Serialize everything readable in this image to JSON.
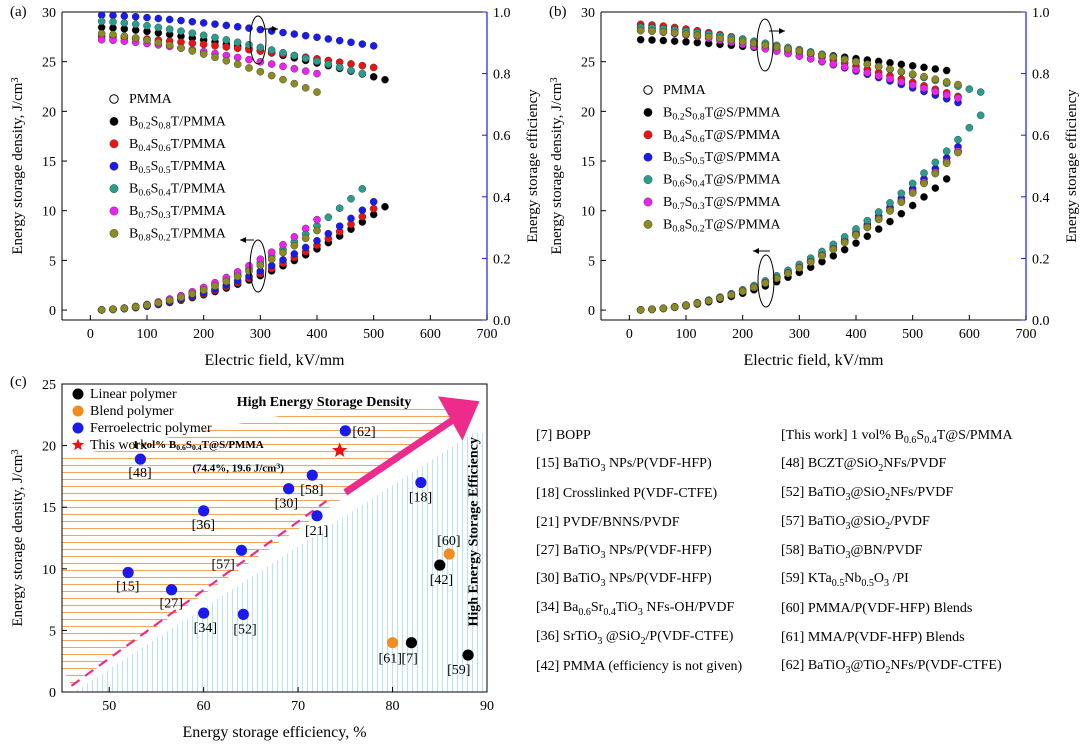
{
  "chart_data": [
    {
      "id": "a",
      "type": "scatter",
      "panel_label": "(a)",
      "xlabel": "Electric field, kV/mm",
      "ylabel_left": "Energy storage density, J/cm",
      "ylabel_left_sup": "3",
      "ylabel_right": "Energy storage efficiency",
      "xlim": [
        -50,
        700
      ],
      "ylim_left": [
        -1,
        30
      ],
      "ylim_right": [
        0,
        1.0
      ],
      "xticks": [
        0,
        100,
        200,
        300,
        400,
        500,
        600,
        700
      ],
      "yticks_left": [
        0,
        5,
        10,
        15,
        20,
        25,
        30
      ],
      "yticks_right": [
        "0.0",
        "0.2",
        "0.4",
        "0.6",
        "0.8",
        "1.0"
      ],
      "legend": [
        {
          "main": "PMMA",
          "parts": []
        },
        {
          "main": "",
          "parts": [
            [
              "B",
              ""
            ],
            [
              "0.2",
              "sub"
            ],
            [
              "S",
              ""
            ],
            [
              "0.8",
              "sub"
            ],
            [
              "T/PMMA",
              ""
            ]
          ]
        },
        {
          "main": "",
          "parts": [
            [
              "B",
              ""
            ],
            [
              "0.4",
              "sub"
            ],
            [
              "S",
              ""
            ],
            [
              "0.6",
              "sub"
            ],
            [
              "T/PMMA",
              ""
            ]
          ]
        },
        {
          "main": "",
          "parts": [
            [
              "B",
              ""
            ],
            [
              "0.5",
              "sub"
            ],
            [
              "S",
              ""
            ],
            [
              "0.5",
              "sub"
            ],
            [
              "T/PMMA",
              ""
            ]
          ]
        },
        {
          "main": "",
          "parts": [
            [
              "B",
              ""
            ],
            [
              "0.6",
              "sub"
            ],
            [
              "S",
              ""
            ],
            [
              "0.4",
              "sub"
            ],
            [
              "T/PMMA",
              ""
            ]
          ]
        },
        {
          "main": "",
          "parts": [
            [
              "B",
              ""
            ],
            [
              "0.7",
              "sub"
            ],
            [
              "S",
              ""
            ],
            [
              "0.3",
              "sub"
            ],
            [
              "T/PMMA",
              ""
            ]
          ]
        },
        {
          "main": "",
          "parts": [
            [
              "B",
              ""
            ],
            [
              "0.8",
              "sub"
            ],
            [
              "S",
              ""
            ],
            [
              "0.2",
              "sub"
            ],
            [
              "T/PMMA",
              ""
            ]
          ]
        }
      ],
      "series": [
        {
          "name": "PMMA",
          "color": "#ffffff",
          "stroke": "#000000",
          "density_max_x": 0,
          "density_max_y": 0,
          "eff": []
        },
        {
          "name": "B0.2S0.8T/PMMA",
          "color": "#000000",
          "density_max_x": 520,
          "density_max_y": 10.4,
          "eff_start": 0.95,
          "eff_end": 0.78
        },
        {
          "name": "B0.4S0.6T/PMMA",
          "color": "#ee1111",
          "density_max_x": 500,
          "density_max_y": 10.2,
          "eff_start": 0.92,
          "eff_end": 0.82
        },
        {
          "name": "B0.5S0.5T/PMMA",
          "color": "#1a1aee",
          "density_max_x": 500,
          "density_max_y": 10.9,
          "eff_start": 0.99,
          "eff_end": 0.89
        },
        {
          "name": "B0.6S0.4T/PMMA",
          "color": "#2a9d8f",
          "density_max_x": 480,
          "density_max_y": 12.2,
          "eff_start": 0.97,
          "eff_end": 0.8
        },
        {
          "name": "B0.7S0.3T/PMMA",
          "color": "#ee22ee",
          "density_max_x": 400,
          "density_max_y": 9.1,
          "eff_start": 0.91,
          "eff_end": 0.8
        },
        {
          "name": "B0.8S0.2T/PMMA",
          "color": "#8b8b22",
          "density_max_x": 400,
          "density_max_y": 8.0,
          "eff_start": 0.93,
          "eff_end": 0.74
        }
      ]
    },
    {
      "id": "b",
      "type": "scatter",
      "panel_label": "(b)",
      "xlabel": "Electric field, kV/mm",
      "ylabel_left": "Energy storage density, J/cm",
      "ylabel_left_sup": "3",
      "ylabel_right": "Energy storage efficiency",
      "xlim": [
        -50,
        700
      ],
      "ylim_left": [
        -1,
        30
      ],
      "ylim_right": [
        0,
        1.0
      ],
      "xticks": [
        0,
        100,
        200,
        300,
        400,
        500,
        600,
        700
      ],
      "yticks_left": [
        0,
        5,
        10,
        15,
        20,
        25,
        30
      ],
      "yticks_right": [
        "0.0",
        "0.2",
        "0.4",
        "0.6",
        "0.8",
        "1.0"
      ],
      "legend": [
        {
          "main": "PMMA",
          "parts": []
        },
        {
          "main": "",
          "parts": [
            [
              "B",
              ""
            ],
            [
              "0.2",
              "sub"
            ],
            [
              "S",
              ""
            ],
            [
              "0.8",
              "sub"
            ],
            [
              "T@S/PMMA",
              ""
            ]
          ]
        },
        {
          "main": "",
          "parts": [
            [
              "B",
              ""
            ],
            [
              "0.4",
              "sub"
            ],
            [
              "S",
              ""
            ],
            [
              "0.6",
              "sub"
            ],
            [
              "T@S/PMMA",
              ""
            ]
          ]
        },
        {
          "main": "",
          "parts": [
            [
              "B",
              ""
            ],
            [
              "0.5",
              "sub"
            ],
            [
              "S",
              ""
            ],
            [
              "0.5",
              "sub"
            ],
            [
              "T@S/PMMA",
              ""
            ]
          ]
        },
        {
          "main": "",
          "parts": [
            [
              "B",
              ""
            ],
            [
              "0.6",
              "sub"
            ],
            [
              "S",
              ""
            ],
            [
              "0.4",
              "sub"
            ],
            [
              "T@S/PMMA",
              ""
            ]
          ]
        },
        {
          "main": "",
          "parts": [
            [
              "B",
              ""
            ],
            [
              "0.7",
              "sub"
            ],
            [
              "S",
              ""
            ],
            [
              "0.3",
              "sub"
            ],
            [
              "T@S/PMMA",
              ""
            ]
          ]
        },
        {
          "main": "",
          "parts": [
            [
              "B",
              ""
            ],
            [
              "0.8",
              "sub"
            ],
            [
              "S",
              ""
            ],
            [
              "0.2",
              "sub"
            ],
            [
              "T@S/PMMA",
              ""
            ]
          ]
        }
      ],
      "series": [
        {
          "name": "PMMA",
          "color": "#ffffff",
          "stroke": "#000000",
          "density_max_x": 0,
          "density_max_y": 0,
          "eff": []
        },
        {
          "name": "B0.2S0.8T@S/PMMA",
          "color": "#000000",
          "density_max_x": 560,
          "density_max_y": 13.2,
          "eff_start": 0.91,
          "eff_end": 0.81
        },
        {
          "name": "B0.4S0.6T@S/PMMA",
          "color": "#ee1111",
          "density_max_x": 590,
          "density_max_y": 16.5,
          "eff_start": 0.96,
          "eff_end": 0.72
        },
        {
          "name": "B0.5S0.5T@S/PMMA",
          "color": "#1a1aee",
          "density_max_x": 590,
          "density_max_y": 17.0,
          "eff_start": 0.95,
          "eff_end": 0.7
        },
        {
          "name": "B0.6S0.4T@S/PMMA",
          "color": "#2a9d8f",
          "density_max_x": 620,
          "density_max_y": 19.6,
          "eff_start": 0.95,
          "eff_end": 0.74
        },
        {
          "name": "B0.7S0.3T@S/PMMA",
          "color": "#ee22ee",
          "density_max_x": 580,
          "density_max_y": 16.0,
          "eff_start": 0.94,
          "eff_end": 0.72
        },
        {
          "name": "B0.8S0.2T@S/PMMA",
          "color": "#8b8b22",
          "density_max_x": 590,
          "density_max_y": 16.4,
          "eff_start": 0.94,
          "eff_end": 0.76
        }
      ]
    },
    {
      "id": "c",
      "type": "scatter",
      "panel_label": "(c)",
      "xlabel": "Energy storage efficiency, %",
      "ylabel": "Energy storage density, J/cm",
      "ylabel_sup": "3",
      "xlim": [
        45,
        90
      ],
      "ylim": [
        0,
        25
      ],
      "xticks": [
        50,
        60,
        70,
        80,
        90
      ],
      "yticks": [
        0,
        5,
        10,
        15,
        20,
        25
      ],
      "legend": [
        {
          "label": "Linear polymer",
          "color": "#000000",
          "shape": "circle"
        },
        {
          "label": "Blend  polymer",
          "color": "#f28c1e",
          "shape": "circle"
        },
        {
          "label": "Ferroelectric polymer",
          "color": "#1a1aee",
          "shape": "circle"
        },
        {
          "label": "This work",
          "color": "#ee1111",
          "shape": "star"
        }
      ],
      "region_top": "High Energy Storage Density",
      "region_right": "High Energy Storage Efficiency",
      "this_work_label_1_parts": [
        [
          "1 vol% B",
          ""
        ],
        [
          "0.6",
          "sub"
        ],
        [
          "S",
          ""
        ],
        [
          "0.4",
          "sub"
        ],
        [
          "T@S/PMMA",
          ""
        ]
      ],
      "this_work_label_2_parts": [
        [
          "(74.4%, 19.6 J/cm",
          ""
        ],
        [
          "3",
          "sup"
        ],
        [
          ")",
          ""
        ]
      ],
      "points": [
        {
          "label": "[48]",
          "x": 53.3,
          "y": 18.9,
          "cat": "ferro"
        },
        {
          "label": "[36]",
          "x": 60.0,
          "y": 14.7,
          "cat": "ferro"
        },
        {
          "label": "[57]",
          "x": 64.0,
          "y": 11.5,
          "cat": "ferro"
        },
        {
          "label": "[15]",
          "x": 52.0,
          "y": 9.7,
          "cat": "ferro"
        },
        {
          "label": "[27]",
          "x": 56.6,
          "y": 8.3,
          "cat": "ferro"
        },
        {
          "label": "[34]",
          "x": 60.0,
          "y": 6.4,
          "cat": "ferro"
        },
        {
          "label": "[52]",
          "x": 64.2,
          "y": 6.3,
          "cat": "ferro"
        },
        {
          "label": "[30]",
          "x": 69.0,
          "y": 16.5,
          "cat": "ferro"
        },
        {
          "label": "[58]",
          "x": 71.5,
          "y": 17.6,
          "cat": "ferro"
        },
        {
          "label": "[21]",
          "x": 72.0,
          "y": 14.3,
          "cat": "ferro"
        },
        {
          "label": "[62]",
          "x": 75.0,
          "y": 21.2,
          "cat": "ferro"
        },
        {
          "label": "[18]",
          "x": 83.0,
          "y": 17.0,
          "cat": "ferro"
        },
        {
          "label": "[60]",
          "x": 86.0,
          "y": 11.2,
          "cat": "blend"
        },
        {
          "label": "[61]",
          "x": 80.0,
          "y": 4.0,
          "cat": "blend"
        },
        {
          "label": "[42]",
          "x": 85.0,
          "y": 10.3,
          "cat": "linear"
        },
        {
          "label": "[7]",
          "x": 82.0,
          "y": 4.0,
          "cat": "linear"
        },
        {
          "label": "[59]",
          "x": 88.0,
          "y": 3.0,
          "cat": "linear"
        },
        {
          "label": "This work",
          "x": 74.4,
          "y": 19.6,
          "cat": "this"
        }
      ]
    }
  ],
  "references": [
    [
      {
        "parts": [
          [
            "[7] BOPP",
            ""
          ]
        ]
      },
      {
        "parts": [
          [
            "[This work] 1 vol% B",
            ""
          ],
          [
            "0.6",
            "sub"
          ],
          [
            "S",
            ""
          ],
          [
            "0.4",
            "sub"
          ],
          [
            "T@S/PMMA",
            ""
          ]
        ]
      }
    ],
    [
      {
        "parts": [
          [
            "[15] BaTiO",
            ""
          ],
          [
            "3",
            "sub"
          ],
          [
            " NPs/P(VDF-HFP)",
            ""
          ]
        ]
      },
      {
        "parts": [
          [
            "[48] BCZT@SiO",
            ""
          ],
          [
            "2",
            "sub"
          ],
          [
            "NFs/PVDF",
            ""
          ]
        ]
      }
    ],
    [
      {
        "parts": [
          [
            "[18] Crosslinked P(VDF-CTFE)",
            ""
          ]
        ]
      },
      {
        "parts": [
          [
            "[52] BaTiO",
            ""
          ],
          [
            "3",
            "sub"
          ],
          [
            "@SiO",
            ""
          ],
          [
            "2",
            "sub"
          ],
          [
            "NFs/PVDF",
            ""
          ]
        ]
      }
    ],
    [
      {
        "parts": [
          [
            "[21]  PVDF/BNNS/PVDF",
            ""
          ]
        ]
      },
      {
        "parts": [
          [
            "[57] BaTiO",
            ""
          ],
          [
            "3",
            "sub"
          ],
          [
            "@SiO",
            ""
          ],
          [
            "2",
            "sub"
          ],
          [
            "/PVDF",
            ""
          ]
        ]
      }
    ],
    [
      {
        "parts": [
          [
            "[27] BaTiO",
            ""
          ],
          [
            "3",
            "sub"
          ],
          [
            " NPs/P(VDF-HFP)",
            ""
          ]
        ]
      },
      {
        "parts": [
          [
            "[58] BaTiO",
            ""
          ],
          [
            "3",
            "sub"
          ],
          [
            "@BN/PVDF",
            ""
          ]
        ]
      }
    ],
    [
      {
        "parts": [
          [
            "[30] BaTiO",
            ""
          ],
          [
            "3",
            "sub"
          ],
          [
            " NPs/P(VDF-HFP)",
            ""
          ]
        ]
      },
      {
        "parts": [
          [
            "[59] KTa",
            ""
          ],
          [
            "0.5",
            "sub"
          ],
          [
            "Nb",
            ""
          ],
          [
            "0.5",
            "sub"
          ],
          [
            "O",
            ""
          ],
          [
            "3",
            "sub"
          ],
          [
            " /PI",
            ""
          ]
        ]
      }
    ],
    [
      {
        "parts": [
          [
            "[34] Ba",
            ""
          ],
          [
            "0.6",
            "sub"
          ],
          [
            "Sr",
            ""
          ],
          [
            "0.4",
            "sub"
          ],
          [
            "TiO",
            ""
          ],
          [
            "3",
            "sub"
          ],
          [
            " NFs-OH/PVDF",
            ""
          ]
        ]
      },
      {
        "parts": [
          [
            "[60] PMMA/P(VDF-HFP) Blends",
            ""
          ]
        ]
      }
    ],
    [
      {
        "parts": [
          [
            "[36] SrTiO",
            ""
          ],
          [
            "3",
            "sub"
          ],
          [
            " @SiO",
            ""
          ],
          [
            "2",
            "sub"
          ],
          [
            "/P(VDF-CTFE)",
            ""
          ]
        ]
      },
      {
        "parts": [
          [
            "[61] MMA/P(VDF-HFP) Blends",
            ""
          ]
        ]
      }
    ],
    [
      {
        "parts": [
          [
            "[42] PMMA (efficiency is not given)",
            ""
          ]
        ]
      },
      {
        "parts": [
          [
            "[62] BaTiO",
            ""
          ],
          [
            "3",
            "sub"
          ],
          [
            "@TiO",
            ""
          ],
          [
            "2",
            "sub"
          ],
          [
            "NFs/P(VDF-CTFE)",
            ""
          ]
        ]
      }
    ]
  ]
}
